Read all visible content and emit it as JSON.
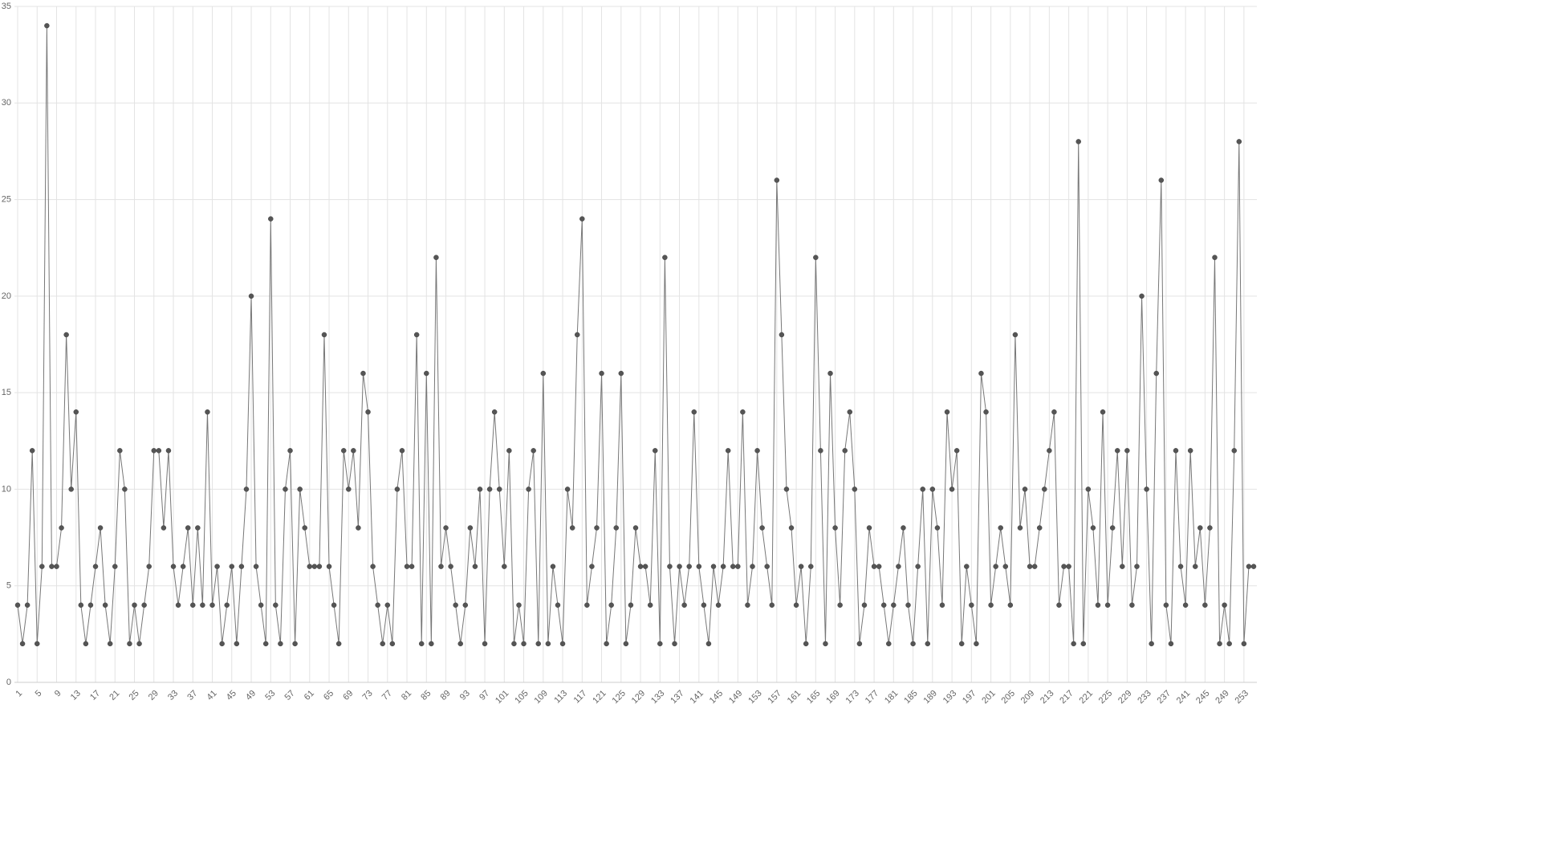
{
  "chart_data": {
    "type": "line",
    "x": [
      1,
      2,
      3,
      4,
      5,
      6,
      7,
      8,
      9,
      10,
      11,
      12,
      13,
      14,
      15,
      16,
      17,
      18,
      19,
      20,
      21,
      22,
      23,
      24,
      25,
      26,
      27,
      28,
      29,
      30,
      31,
      32,
      33,
      34,
      35,
      36,
      37,
      38,
      39,
      40,
      41,
      42,
      43,
      44,
      45,
      46,
      47,
      48,
      49,
      50,
      51,
      52,
      53,
      54,
      55,
      56,
      57,
      58,
      59,
      60,
      61,
      62,
      63,
      64,
      65,
      66,
      67,
      68,
      69,
      70,
      71,
      72,
      73,
      74,
      75,
      76,
      77,
      78,
      79,
      80,
      81,
      82,
      83,
      84,
      85,
      86,
      87,
      88,
      89,
      90,
      91,
      92,
      93,
      94,
      95,
      96,
      97,
      98,
      99,
      100,
      101,
      102,
      103,
      104,
      105,
      106,
      107,
      108,
      109,
      110,
      111,
      112,
      113,
      114,
      115,
      116,
      117,
      118,
      119,
      120,
      121,
      122,
      123,
      124,
      125,
      126,
      127,
      128,
      129,
      130,
      131,
      132,
      133,
      134,
      135,
      136,
      137,
      138,
      139,
      140,
      141,
      142,
      143,
      144,
      145,
      146,
      147,
      148,
      149,
      150,
      151,
      152,
      153,
      154,
      155,
      156,
      157,
      158,
      159,
      160,
      161,
      162,
      163,
      164,
      165,
      166,
      167,
      168,
      169,
      170,
      171,
      172,
      173,
      174,
      175,
      176,
      177,
      178,
      179,
      180,
      181,
      182,
      183,
      184,
      185,
      186,
      187,
      188,
      189,
      190,
      191,
      192,
      193,
      194,
      195,
      196,
      197,
      198,
      199,
      200,
      201,
      202,
      203,
      204,
      205,
      206,
      207,
      208,
      209,
      210,
      211,
      212,
      213,
      214,
      215,
      216,
      217,
      218,
      219,
      220,
      221,
      222,
      223,
      224,
      225,
      226,
      227,
      228,
      229,
      230,
      231,
      232,
      233,
      234,
      235,
      236,
      237,
      238,
      239,
      240,
      241,
      242,
      243,
      244,
      245,
      246,
      247,
      248,
      249,
      250,
      251,
      252,
      253,
      254,
      255
    ],
    "series": [
      {
        "color": "#777777",
        "values": [
          4,
          2,
          4,
          12,
          2,
          6,
          34,
          6,
          6,
          8,
          18,
          10,
          14,
          4,
          2,
          4,
          6,
          8,
          4,
          2,
          6,
          12,
          10,
          2,
          4,
          2,
          4,
          6,
          12,
          12,
          8,
          12,
          6,
          4,
          6,
          8,
          4,
          8,
          4,
          14,
          4,
          6,
          2,
          4,
          6,
          2,
          6,
          10,
          20,
          6,
          4,
          2,
          24,
          4,
          2,
          10,
          12,
          2,
          10,
          8,
          6,
          6,
          6,
          18,
          6,
          4,
          2,
          12,
          10,
          12,
          8,
          16,
          14,
          6,
          4,
          2,
          4,
          2,
          10,
          12,
          6,
          6,
          18,
          2,
          16,
          2,
          22,
          6,
          8,
          6,
          4,
          2,
          4,
          8,
          6,
          10,
          2,
          10,
          14,
          10,
          6,
          12,
          2,
          4,
          2,
          10,
          12,
          2,
          16,
          2,
          6,
          4,
          2,
          10,
          8,
          18,
          24,
          4,
          6,
          8,
          16,
          2,
          4,
          8,
          16,
          2,
          4,
          8,
          6,
          6,
          4,
          12,
          2,
          22,
          6,
          2,
          6,
          4,
          6,
          14,
          6,
          4,
          2,
          6,
          4,
          6,
          12,
          6,
          6,
          14,
          4,
          6,
          12,
          8,
          6,
          4,
          26,
          18,
          10,
          8,
          4,
          6,
          2,
          6,
          22,
          12,
          2,
          16,
          8,
          4,
          12,
          14,
          10,
          2,
          4,
          8,
          6,
          6,
          4,
          2,
          4,
          6,
          8,
          4,
          2,
          6,
          10,
          2,
          10,
          8,
          4,
          14,
          10,
          12,
          2,
          6,
          4,
          2,
          16,
          14,
          4,
          6,
          8,
          6,
          4,
          18,
          8,
          10,
          6,
          6,
          8,
          10,
          12,
          14,
          4,
          6,
          6,
          2,
          28,
          2,
          10,
          8,
          4,
          14,
          4,
          8,
          12,
          6,
          12,
          4,
          6,
          20,
          10,
          2,
          16,
          26,
          4,
          2,
          12,
          6,
          4,
          12,
          6,
          8,
          4,
          8,
          22,
          2,
          4,
          2,
          12,
          28,
          2,
          6,
          6
        ]
      }
    ],
    "xlim": [
      1,
      255
    ],
    "xticks": [
      1,
      5,
      9,
      13,
      17,
      21,
      25,
      29,
      33,
      37,
      41,
      45,
      49,
      53,
      57,
      61,
      65,
      69,
      73,
      77,
      81,
      85,
      89,
      93,
      97,
      101,
      105,
      109,
      113,
      117,
      121,
      125,
      129,
      133,
      137,
      141,
      145,
      149,
      153,
      157,
      161,
      165,
      169,
      173,
      177,
      181,
      185,
      189,
      193,
      197,
      201,
      205,
      209,
      213,
      217,
      221,
      225,
      229,
      233,
      237,
      241,
      245,
      249,
      253
    ],
    "ylim": [
      0,
      35
    ],
    "yticks": [
      0,
      5,
      10,
      15,
      20,
      25,
      30,
      35
    ],
    "grid": true,
    "marker_color": "#555555"
  }
}
